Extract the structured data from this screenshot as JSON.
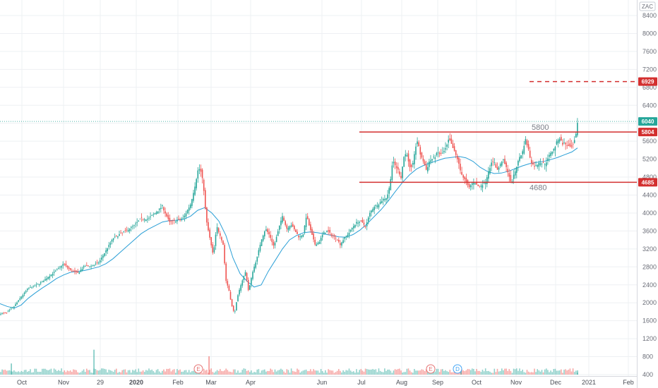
{
  "chart_data": {
    "type": "candlestick",
    "currency": "ZAC",
    "ylim": [
      400,
      8700
    ],
    "y_ticks": [
      400,
      800,
      1200,
      1600,
      2000,
      2400,
      2800,
      3200,
      3600,
      4000,
      4400,
      4800,
      5200,
      5600,
      6000,
      6400,
      6800,
      7200,
      7600,
      8000,
      8400
    ],
    "x_ticks": [
      "Oct",
      "Nov",
      "29",
      "2020",
      "Feb",
      "Mar",
      "Apr",
      "Jun",
      "Jul",
      "Aug",
      "Sep",
      "Oct",
      "Nov",
      "Dec",
      "2021",
      "Feb"
    ],
    "x_tick_bold": [
      false,
      false,
      false,
      true,
      false,
      false,
      false,
      false,
      false,
      false,
      false,
      false,
      false,
      false,
      false,
      false
    ],
    "close_path": [
      [
        0,
        1750
      ],
      [
        10,
        1780
      ],
      [
        20,
        1920
      ],
      [
        30,
        2130
      ],
      [
        40,
        2320
      ],
      [
        50,
        2380
      ],
      [
        60,
        2470
      ],
      [
        70,
        2600
      ],
      [
        80,
        2720
      ],
      [
        90,
        2870
      ],
      [
        100,
        2720
      ],
      [
        110,
        2660
      ],
      [
        120,
        2820
      ],
      [
        130,
        2820
      ],
      [
        140,
        2900
      ],
      [
        150,
        3160
      ],
      [
        160,
        3430
      ],
      [
        170,
        3530
      ],
      [
        180,
        3620
      ],
      [
        190,
        3720
      ],
      [
        200,
        3880
      ],
      [
        210,
        3870
      ],
      [
        220,
        4000
      ],
      [
        230,
        4150
      ],
      [
        240,
        3790
      ],
      [
        250,
        3830
      ],
      [
        260,
        3890
      ],
      [
        270,
        4200
      ],
      [
        276,
        4600
      ],
      [
        281,
        5000
      ],
      [
        284,
        4950
      ],
      [
        288,
        4650
      ],
      [
        292,
        3850
      ],
      [
        297,
        3450
      ],
      [
        302,
        3050
      ],
      [
        307,
        3700
      ],
      [
        312,
        3500
      ],
      [
        316,
        3300
      ],
      [
        320,
        2500
      ],
      [
        324,
        2300
      ],
      [
        328,
        1950
      ],
      [
        332,
        1750
      ],
      [
        336,
        2100
      ],
      [
        342,
        2450
      ],
      [
        348,
        2700
      ],
      [
        352,
        2250
      ],
      [
        358,
        2700
      ],
      [
        364,
        3000
      ],
      [
        370,
        3400
      ],
      [
        376,
        3650
      ],
      [
        382,
        3500
      ],
      [
        388,
        3250
      ],
      [
        394,
        3600
      ],
      [
        400,
        3950
      ],
      [
        406,
        3650
      ],
      [
        412,
        3750
      ],
      [
        418,
        3600
      ],
      [
        424,
        3450
      ],
      [
        430,
        3550
      ],
      [
        434,
        3950
      ],
      [
        440,
        3600
      ],
      [
        446,
        3300
      ],
      [
        452,
        3350
      ],
      [
        458,
        3550
      ],
      [
        464,
        3600
      ],
      [
        470,
        3500
      ],
      [
        476,
        3450
      ],
      [
        482,
        3300
      ],
      [
        488,
        3450
      ],
      [
        494,
        3550
      ],
      [
        500,
        3700
      ],
      [
        506,
        3800
      ],
      [
        512,
        3800
      ],
      [
        518,
        3700
      ],
      [
        524,
        4000
      ],
      [
        530,
        4150
      ],
      [
        536,
        4200
      ],
      [
        542,
        4300
      ],
      [
        548,
        4350
      ],
      [
        552,
        4600
      ],
      [
        556,
        5150
      ],
      [
        560,
        5050
      ],
      [
        564,
        4950
      ],
      [
        568,
        4800
      ],
      [
        572,
        5250
      ],
      [
        576,
        5350
      ],
      [
        580,
        5000
      ],
      [
        584,
        5000
      ],
      [
        588,
        5450
      ],
      [
        592,
        5600
      ],
      [
        596,
        5250
      ],
      [
        600,
        5150
      ],
      [
        604,
        4950
      ],
      [
        608,
        5150
      ],
      [
        612,
        5200
      ],
      [
        616,
        5250
      ],
      [
        620,
        5350
      ],
      [
        624,
        5300
      ],
      [
        628,
        5350
      ],
      [
        632,
        5450
      ],
      [
        636,
        5650
      ],
      [
        640,
        5500
      ],
      [
        644,
        5350
      ],
      [
        648,
        5200
      ],
      [
        652,
        4950
      ],
      [
        656,
        4800
      ],
      [
        660,
        4700
      ],
      [
        664,
        4550
      ],
      [
        668,
        4650
      ],
      [
        672,
        4700
      ],
      [
        676,
        4600
      ],
      [
        680,
        4600
      ],
      [
        684,
        4650
      ],
      [
        688,
        4700
      ],
      [
        692,
        4950
      ],
      [
        696,
        5100
      ],
      [
        700,
        5150
      ],
      [
        704,
        4950
      ],
      [
        708,
        5050
      ],
      [
        712,
        5200
      ],
      [
        716,
        5050
      ],
      [
        720,
        4900
      ],
      [
        724,
        4650
      ],
      [
        728,
        4850
      ],
      [
        732,
        5050
      ],
      [
        736,
        5250
      ],
      [
        740,
        5350
      ],
      [
        744,
        5650
      ],
      [
        748,
        5450
      ],
      [
        752,
        5150
      ],
      [
        756,
        5050
      ],
      [
        760,
        5050
      ],
      [
        764,
        5150
      ],
      [
        768,
        5100
      ],
      [
        772,
        5100
      ],
      [
        776,
        5200
      ],
      [
        780,
        5350
      ],
      [
        784,
        5400
      ],
      [
        788,
        5550
      ],
      [
        792,
        5700
      ],
      [
        796,
        5550
      ],
      [
        800,
        5550
      ],
      [
        804,
        5500
      ],
      [
        808,
        5450
      ],
      [
        812,
        5500
      ],
      [
        816,
        5750
      ],
      [
        818,
        6040
      ]
    ],
    "ma_path": [
      [
        0,
        1980
      ],
      [
        10,
        1920
      ],
      [
        20,
        1880
      ],
      [
        30,
        1950
      ],
      [
        40,
        2100
      ],
      [
        50,
        2220
      ],
      [
        60,
        2330
      ],
      [
        70,
        2430
      ],
      [
        80,
        2540
      ],
      [
        90,
        2620
      ],
      [
        100,
        2680
      ],
      [
        110,
        2700
      ],
      [
        120,
        2720
      ],
      [
        130,
        2760
      ],
      [
        140,
        2800
      ],
      [
        150,
        2870
      ],
      [
        160,
        2980
      ],
      [
        170,
        3120
      ],
      [
        180,
        3260
      ],
      [
        190,
        3400
      ],
      [
        200,
        3540
      ],
      [
        210,
        3640
      ],
      [
        220,
        3720
      ],
      [
        230,
        3800
      ],
      [
        240,
        3830
      ],
      [
        250,
        3840
      ],
      [
        260,
        3860
      ],
      [
        270,
        3930
      ],
      [
        280,
        4060
      ],
      [
        290,
        4120
      ],
      [
        300,
        4000
      ],
      [
        310,
        3820
      ],
      [
        320,
        3500
      ],
      [
        330,
        3000
      ],
      [
        340,
        2650
      ],
      [
        350,
        2480
      ],
      [
        360,
        2350
      ],
      [
        370,
        2400
      ],
      [
        380,
        2700
      ],
      [
        390,
        2950
      ],
      [
        400,
        3200
      ],
      [
        410,
        3400
      ],
      [
        420,
        3500
      ],
      [
        430,
        3560
      ],
      [
        440,
        3580
      ],
      [
        450,
        3560
      ],
      [
        460,
        3530
      ],
      [
        470,
        3500
      ],
      [
        480,
        3470
      ],
      [
        490,
        3460
      ],
      [
        500,
        3520
      ],
      [
        510,
        3620
      ],
      [
        520,
        3760
      ],
      [
        530,
        3920
      ],
      [
        540,
        4080
      ],
      [
        550,
        4270
      ],
      [
        560,
        4480
      ],
      [
        570,
        4680
      ],
      [
        580,
        4850
      ],
      [
        590,
        4980
      ],
      [
        600,
        5060
      ],
      [
        610,
        5120
      ],
      [
        620,
        5170
      ],
      [
        630,
        5220
      ],
      [
        640,
        5240
      ],
      [
        650,
        5260
      ],
      [
        660,
        5230
      ],
      [
        670,
        5150
      ],
      [
        680,
        5020
      ],
      [
        690,
        4930
      ],
      [
        700,
        4880
      ],
      [
        710,
        4890
      ],
      [
        720,
        4930
      ],
      [
        730,
        4990
      ],
      [
        740,
        5050
      ],
      [
        750,
        5100
      ],
      [
        760,
        5130
      ],
      [
        770,
        5150
      ],
      [
        780,
        5190
      ],
      [
        790,
        5240
      ],
      [
        800,
        5300
      ],
      [
        810,
        5360
      ],
      [
        818,
        5450
      ]
    ],
    "volume_ylim": [
      0,
      7000
    ],
    "volume_spikes": [
      [
        16,
        1600
      ],
      [
        133,
        3580
      ],
      [
        296,
        2630
      ],
      [
        653,
        480
      ],
      [
        818,
        600
      ]
    ],
    "support_level": 4685,
    "resistance_level": 5804,
    "support_label": "4680",
    "resistance_label": "5800",
    "target_level": 6929,
    "last_price": 6040,
    "price_badges": [
      {
        "value": "6929",
        "color": "#d32f2f"
      },
      {
        "value": "6040",
        "color": "#26a69a"
      },
      {
        "value": "5804",
        "color": "#d32f2f"
      },
      {
        "value": "4685",
        "color": "#d32f2f"
      }
    ],
    "events": [
      {
        "letter": "E",
        "color": "#e57373"
      },
      {
        "letter": "E",
        "color": "#e57373"
      },
      {
        "letter": "D",
        "color": "#42a5f5"
      }
    ],
    "colors": {
      "up": "#26a69a",
      "down": "#ef5350",
      "ma": "#2a9fd6",
      "level": "#d32f2f",
      "grid": "#eef0f3",
      "last": "#26a69a"
    }
  }
}
